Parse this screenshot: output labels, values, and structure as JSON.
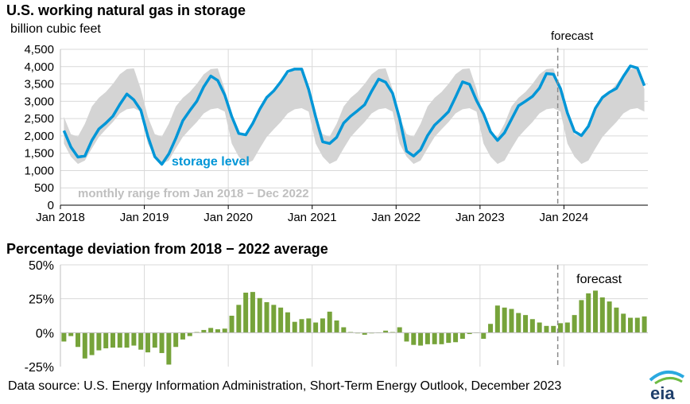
{
  "chart_data": [
    {
      "type": "line",
      "title": "U.S. working natural gas in storage",
      "ylabel": "billion cubic feet",
      "x_range": [
        "Jan 2018",
        "Dec 2024"
      ],
      "ylim": [
        0,
        4500
      ],
      "yticks": [
        "0",
        "500",
        "1,000",
        "1,500",
        "2,000",
        "2,500",
        "3,000",
        "3,500",
        "4,000",
        "4,500"
      ],
      "ytick_values": [
        0,
        500,
        1000,
        1500,
        2000,
        2500,
        3000,
        3500,
        4000,
        4500
      ],
      "xticks": [
        "Jan 2018",
        "Jan 2019",
        "Jan 2020",
        "Jan 2021",
        "Jan 2022",
        "Jan 2023",
        "Jan 2024"
      ],
      "grid": "horizontal and vertical",
      "forecast_label": "forecast",
      "forecast_start": "Dec 2023",
      "series": [
        {
          "name": "storage level",
          "color": "#0096d7",
          "values": [
            2150,
            1680,
            1390,
            1420,
            1870,
            2200,
            2370,
            2570,
            2910,
            3210,
            3040,
            2740,
            1990,
            1400,
            1180,
            1480,
            1930,
            2440,
            2730,
            3000,
            3420,
            3730,
            3600,
            3180,
            2560,
            2070,
            2030,
            2360,
            2770,
            3110,
            3300,
            3560,
            3860,
            3930,
            3930,
            3340,
            2550,
            1830,
            1780,
            1960,
            2370,
            2570,
            2730,
            2900,
            3290,
            3640,
            3550,
            3230,
            2500,
            1560,
            1420,
            1600,
            2010,
            2310,
            2500,
            2700,
            3120,
            3560,
            3490,
            3020,
            2640,
            2120,
            1870,
            2090,
            2480,
            2870,
            3000,
            3140,
            3380,
            3800,
            3780,
            3370,
            2660,
            2130,
            2010,
            2280,
            2800,
            3110,
            3260,
            3370,
            3720,
            4020,
            3960,
            3450
          ]
        },
        {
          "name": "monthly range from Jan 2018 − Dec 2022",
          "color": "#d4d4d4",
          "low": [
            1780,
            1400,
            1190,
            1290,
            1640,
            1970,
            2190,
            2400,
            2650,
            2770,
            2800,
            2700
          ],
          "high": [
            2550,
            2050,
            1980,
            2350,
            2850,
            3100,
            3270,
            3500,
            3780,
            3930,
            3950,
            3350
          ]
        }
      ],
      "annotations": [
        "storage level",
        "monthly range from Jan 2018 − Dec 2022"
      ]
    },
    {
      "type": "bar",
      "title": "Percentage deviation from 2018 − 2022 average",
      "ylim": [
        -25,
        50
      ],
      "yticks": [
        "-25%",
        "0%",
        "25%",
        "50%"
      ],
      "ytick_values": [
        -25,
        0,
        25,
        50
      ],
      "color": "#76a33a",
      "forecast_label": "forecast",
      "forecast_start": "Dec 2023",
      "values": [
        -6.5,
        -2.5,
        -10.5,
        -19,
        -16.5,
        -13,
        -11.5,
        -11,
        -11,
        -11,
        -9.5,
        -12.5,
        -14.5,
        -11,
        -15,
        -23.5,
        -10.5,
        -5,
        -2.5,
        0.5,
        2,
        3.5,
        2.5,
        3,
        12.5,
        20.5,
        29.5,
        30,
        25.5,
        22.5,
        20.5,
        18.5,
        15,
        8,
        10,
        10.5,
        7.5,
        10.5,
        15.5,
        9,
        4,
        0.5,
        -0.5,
        -1.5,
        -0.5,
        0,
        1.5,
        0.5,
        4,
        -6.5,
        -9,
        -9.5,
        -8.5,
        -8.5,
        -8.5,
        -7.5,
        -7,
        -4.5,
        -1,
        0,
        -4.5,
        6.5,
        20,
        18.5,
        17.5,
        14.5,
        13,
        10,
        7.5,
        5,
        5,
        7,
        7.5,
        13,
        24,
        29,
        31,
        26,
        23,
        18.5,
        14,
        11,
        11,
        12
      ]
    }
  ],
  "source_text": "Data source: U.S. Energy Information Administration, Short-Term Energy Outlook, December 2023",
  "logo_text": "eia"
}
